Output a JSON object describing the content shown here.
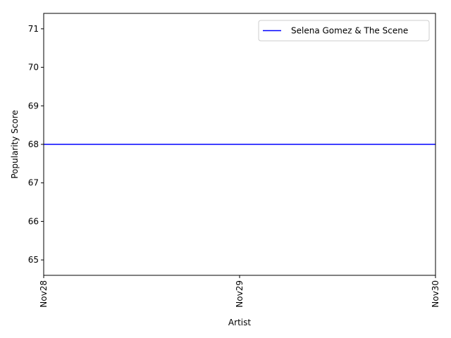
{
  "chart_data": {
    "type": "line",
    "title": "",
    "xlabel": "Artist",
    "ylabel": "Popularity Score",
    "x": [
      "Nov28",
      "Nov29",
      "Nov30"
    ],
    "series": [
      {
        "name": "Selena Gomez & The Scene",
        "values": [
          68,
          68,
          68
        ],
        "color": "#0000ff"
      }
    ],
    "xlim": [
      0,
      2
    ],
    "ylim": [
      64.6,
      71.4
    ],
    "yticks": [
      65,
      66,
      67,
      68,
      69,
      70,
      71
    ],
    "x_tick_rotation": "vertical",
    "grid": false,
    "legend_position": "top-right"
  }
}
